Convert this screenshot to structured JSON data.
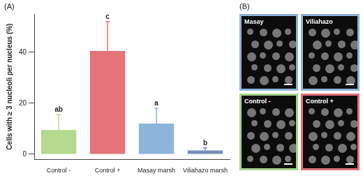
{
  "panel_labels": [
    "(A)",
    "(B)"
  ],
  "chart_data": {
    "type": "bar",
    "categories": [
      "Control -",
      "Control +",
      "Masay marsh",
      "Viliahazo marsh"
    ],
    "values": [
      9.5,
      40.5,
      12,
      1.5
    ],
    "errors": [
      6,
      11.5,
      6,
      1
    ],
    "annotations": [
      "ab",
      "c",
      "a",
      "b"
    ],
    "colors": [
      "#b5d98e",
      "#e4737a",
      "#8fb4d9",
      "#7890b4"
    ],
    "y_label": "Cells with ≥ 3 nucleoli per nucleus (%)",
    "ylim": [
      -2,
      55
    ],
    "yticks": [
      0,
      20,
      40
    ],
    "grid": false
  },
  "images": [
    {
      "label": "Masay",
      "color": "#8fb4d9"
    },
    {
      "label": "Viliahazo",
      "color": "#8fb4d9"
    },
    {
      "label": "Control -",
      "color": "#a8d58a"
    },
    {
      "label": "Control +",
      "color": "#e4737a"
    }
  ]
}
